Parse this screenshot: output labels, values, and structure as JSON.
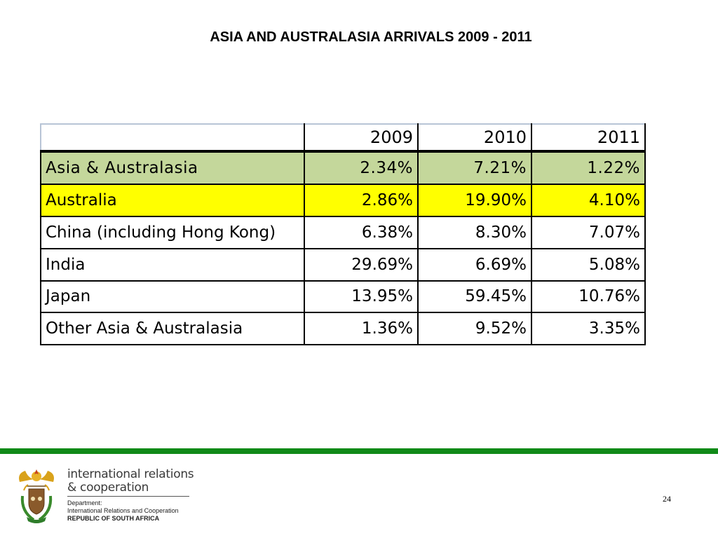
{
  "title": "ASIA AND AUSTRALASIA  ARRIVALS 2009 - 2011",
  "table": {
    "header_label": "",
    "years": [
      "2009",
      "2010",
      "2011"
    ],
    "rows": [
      {
        "label": "Asia & Australasia",
        "values": [
          "2.34%",
          "7.21%",
          "1.22%"
        ],
        "fill": "#c4d79b"
      },
      {
        "label": "Australia",
        "values": [
          "2.86%",
          "19.90%",
          "4.10%"
        ],
        "fill": "#ffff00"
      },
      {
        "label": "China (including Hong Kong)",
        "values": [
          "6.38%",
          "8.30%",
          "7.07%"
        ],
        "fill": "#ffffff"
      },
      {
        "label": "India",
        "values": [
          "29.69%",
          "6.69%",
          "5.08%"
        ],
        "fill": "#ffffff"
      },
      {
        "label": "Japan",
        "values": [
          "13.95%",
          "59.45%",
          "10.76%"
        ],
        "fill": "#ffffff"
      },
      {
        "label": "Other Asia & Australasia",
        "values": [
          "1.36%",
          "9.52%",
          "3.35%"
        ],
        "fill": "#ffffff"
      }
    ]
  },
  "footer": {
    "org_line1": "international relations",
    "org_line2": "& cooperation",
    "dept_label": "Department:",
    "dept_full": "International Relations and Cooperation",
    "country": "REPUBLIC OF SOUTH AFRICA",
    "page_number": "24",
    "bar_color": "#108a18",
    "logo_icon": "south-africa-coat-of-arms-icon"
  }
}
